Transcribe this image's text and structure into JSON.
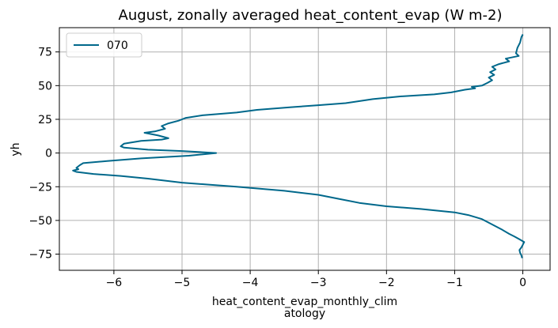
{
  "chart_data": {
    "type": "line",
    "title": "August, zonally averaged heat_content_evap (W m-2)",
    "xlabel_lines": [
      "heat_content_evap_monthly_clim",
      "atology"
    ],
    "ylabel": "yh",
    "xlim": [
      -6.8,
      0.4
    ],
    "ylim": [
      -87,
      93
    ],
    "xticks": [
      -6,
      -5,
      -4,
      -3,
      -2,
      -1,
      0
    ],
    "xtick_labels": [
      "−6",
      "−5",
      "−4",
      "−3",
      "−2",
      "−1",
      "0"
    ],
    "yticks": [
      -75,
      -50,
      -25,
      0,
      25,
      50,
      75
    ],
    "ytick_labels": [
      "−75",
      "−50",
      "−25",
      "0",
      "25",
      "50",
      "75"
    ],
    "grid": true,
    "legend_position": "upper-left",
    "series": [
      {
        "name": "070",
        "color": "#00688b",
        "points": [
          [
            0.0,
            88
          ],
          [
            -0.02,
            86
          ],
          [
            -0.04,
            82
          ],
          [
            -0.08,
            78
          ],
          [
            -0.1,
            74
          ],
          [
            -0.06,
            72
          ],
          [
            -0.25,
            70
          ],
          [
            -0.2,
            68
          ],
          [
            -0.35,
            66
          ],
          [
            -0.45,
            64
          ],
          [
            -0.4,
            62
          ],
          [
            -0.48,
            60
          ],
          [
            -0.42,
            58
          ],
          [
            -0.5,
            56
          ],
          [
            -0.45,
            54
          ],
          [
            -0.52,
            52
          ],
          [
            -0.6,
            50
          ],
          [
            -0.75,
            49
          ],
          [
            -0.7,
            48
          ],
          [
            -0.85,
            47
          ],
          [
            -1.05,
            45
          ],
          [
            -1.3,
            43.5
          ],
          [
            -1.8,
            42
          ],
          [
            -2.2,
            40
          ],
          [
            -2.6,
            37
          ],
          [
            -3.0,
            35.5
          ],
          [
            -3.4,
            34
          ],
          [
            -3.9,
            32
          ],
          [
            -4.2,
            30
          ],
          [
            -4.7,
            28
          ],
          [
            -4.95,
            26
          ],
          [
            -5.0,
            25
          ],
          [
            -5.05,
            24
          ],
          [
            -5.2,
            22
          ],
          [
            -5.3,
            20
          ],
          [
            -5.25,
            18
          ],
          [
            -5.4,
            16
          ],
          [
            -5.55,
            15
          ],
          [
            -5.35,
            13
          ],
          [
            -5.2,
            11
          ],
          [
            -5.3,
            10
          ],
          [
            -5.6,
            9
          ],
          [
            -5.85,
            7
          ],
          [
            -5.9,
            5
          ],
          [
            -5.85,
            4
          ],
          [
            -5.5,
            2.5
          ],
          [
            -5.0,
            1.5
          ],
          [
            -4.5,
            0
          ],
          [
            -4.9,
            -2
          ],
          [
            -5.6,
            -4
          ],
          [
            -6.1,
            -6
          ],
          [
            -6.45,
            -7.5
          ],
          [
            -6.5,
            -9
          ],
          [
            -6.55,
            -11
          ],
          [
            -6.52,
            -12
          ],
          [
            -6.6,
            -13
          ],
          [
            -6.55,
            -14
          ],
          [
            -6.3,
            -15.5
          ],
          [
            -5.9,
            -17
          ],
          [
            -5.5,
            -19
          ],
          [
            -5.0,
            -22
          ],
          [
            -4.2,
            -25
          ],
          [
            -3.5,
            -28
          ],
          [
            -3.0,
            -31
          ],
          [
            -2.7,
            -34
          ],
          [
            -2.4,
            -37
          ],
          [
            -2.0,
            -39.5
          ],
          [
            -1.5,
            -41.5
          ],
          [
            -1.0,
            -44
          ],
          [
            -0.8,
            -46
          ],
          [
            -0.6,
            -49
          ],
          [
            -0.45,
            -53
          ],
          [
            -0.3,
            -57
          ],
          [
            -0.2,
            -60
          ],
          [
            -0.12,
            -62
          ],
          [
            -0.05,
            -64
          ],
          [
            0.02,
            -66
          ],
          [
            0.0,
            -68
          ],
          [
            -0.02,
            -70
          ],
          [
            -0.05,
            -72
          ],
          [
            -0.04,
            -74
          ],
          [
            -0.02,
            -76
          ],
          [
            -0.01,
            -78
          ]
        ]
      }
    ]
  }
}
